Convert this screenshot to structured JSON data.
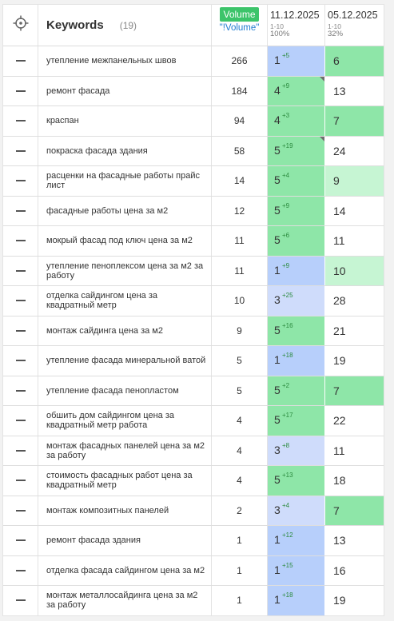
{
  "header": {
    "keywords_title": "Keywords",
    "keywords_count": "(19)",
    "volume_label": "Volume",
    "volume_exact_label": "\"!Volume\"",
    "date1": "11.12.2025",
    "date1_range": "1-10",
    "date1_percent": "100%",
    "date2": "05.12.2025",
    "date2_range": "1-10",
    "date2_percent": "32%"
  },
  "colors": {
    "top1": "#b7cffb",
    "top3": "#cfdcfb",
    "top5": "#8ee6a8",
    "top10": "#c6f5d3",
    "volume_button": "#3cc46a",
    "exact_volume_link": "#1e7bd0"
  },
  "rows": [
    {
      "keyword": "утепление межпанельных швов",
      "volume": "266",
      "pos1": "1",
      "chg1": "+5",
      "pos2": "6",
      "bg1": "bl",
      "bg2": "g1",
      "flag": false
    },
    {
      "keyword": "ремонт фасада",
      "volume": "184",
      "pos1": "4",
      "chg1": "+9",
      "pos2": "13",
      "bg1": "g1",
      "bg2": "wh",
      "flag": true
    },
    {
      "keyword": "краспан",
      "volume": "94",
      "pos1": "4",
      "chg1": "+3",
      "pos2": "7",
      "bg1": "g1",
      "bg2": "g1",
      "flag": false
    },
    {
      "keyword": "покраска фасада здания",
      "volume": "58",
      "pos1": "5",
      "chg1": "+19",
      "pos2": "24",
      "bg1": "g1",
      "bg2": "wh",
      "flag": true
    },
    {
      "keyword": "расценки на фасадные работы прайс лист",
      "volume": "14",
      "pos1": "5",
      "chg1": "+4",
      "pos2": "9",
      "bg1": "g1",
      "bg2": "g2",
      "flag": false
    },
    {
      "keyword": "фасадные работы цена за м2",
      "volume": "12",
      "pos1": "5",
      "chg1": "+9",
      "pos2": "14",
      "bg1": "g1",
      "bg2": "wh",
      "flag": false
    },
    {
      "keyword": "мокрый фасад под ключ цена за м2",
      "volume": "11",
      "pos1": "5",
      "chg1": "+6",
      "pos2": "11",
      "bg1": "g1",
      "bg2": "wh",
      "flag": false
    },
    {
      "keyword": "утепление пеноплексом цена за м2 за работу",
      "volume": "11",
      "pos1": "1",
      "chg1": "+9",
      "pos2": "10",
      "bg1": "bl",
      "bg2": "g2",
      "flag": false
    },
    {
      "keyword": "отделка сайдингом цена за квадратный метр",
      "volume": "10",
      "pos1": "3",
      "chg1": "+25",
      "pos2": "28",
      "bg1": "lb",
      "bg2": "wh",
      "flag": false
    },
    {
      "keyword": "монтаж сайдинга цена за м2",
      "volume": "9",
      "pos1": "5",
      "chg1": "+16",
      "pos2": "21",
      "bg1": "g1",
      "bg2": "wh",
      "flag": false
    },
    {
      "keyword": "утепление фасада минеральной ватой",
      "volume": "5",
      "pos1": "1",
      "chg1": "+18",
      "pos2": "19",
      "bg1": "bl",
      "bg2": "wh",
      "flag": false
    },
    {
      "keyword": "утепление фасада пенопластом",
      "volume": "5",
      "pos1": "5",
      "chg1": "+2",
      "pos2": "7",
      "bg1": "g1",
      "bg2": "g1",
      "flag": false
    },
    {
      "keyword": "обшить дом сайдингом цена за квадратный метр работа",
      "volume": "4",
      "pos1": "5",
      "chg1": "+17",
      "pos2": "22",
      "bg1": "g1",
      "bg2": "wh",
      "flag": false
    },
    {
      "keyword": "монтаж фасадных панелей цена за м2 за работу",
      "volume": "4",
      "pos1": "3",
      "chg1": "+8",
      "pos2": "11",
      "bg1": "lb",
      "bg2": "wh",
      "flag": false
    },
    {
      "keyword": "стоимость фасадных работ цена за квадратный метр",
      "volume": "4",
      "pos1": "5",
      "chg1": "+13",
      "pos2": "18",
      "bg1": "g1",
      "bg2": "wh",
      "flag": false
    },
    {
      "keyword": "монтаж композитных панелей",
      "volume": "2",
      "pos1": "3",
      "chg1": "+4",
      "pos2": "7",
      "bg1": "lb",
      "bg2": "g1",
      "flag": false
    },
    {
      "keyword": "ремонт фасада здания",
      "volume": "1",
      "pos1": "1",
      "chg1": "+12",
      "pos2": "13",
      "bg1": "bl",
      "bg2": "wh",
      "flag": false
    },
    {
      "keyword": "отделка фасада сайдингом цена за м2",
      "volume": "1",
      "pos1": "1",
      "chg1": "+15",
      "pos2": "16",
      "bg1": "bl",
      "bg2": "wh",
      "flag": false
    },
    {
      "keyword": "монтаж металлосайдинга цена за м2 за работу",
      "volume": "1",
      "pos1": "1",
      "chg1": "+18",
      "pos2": "19",
      "bg1": "bl",
      "bg2": "wh",
      "flag": false
    }
  ]
}
